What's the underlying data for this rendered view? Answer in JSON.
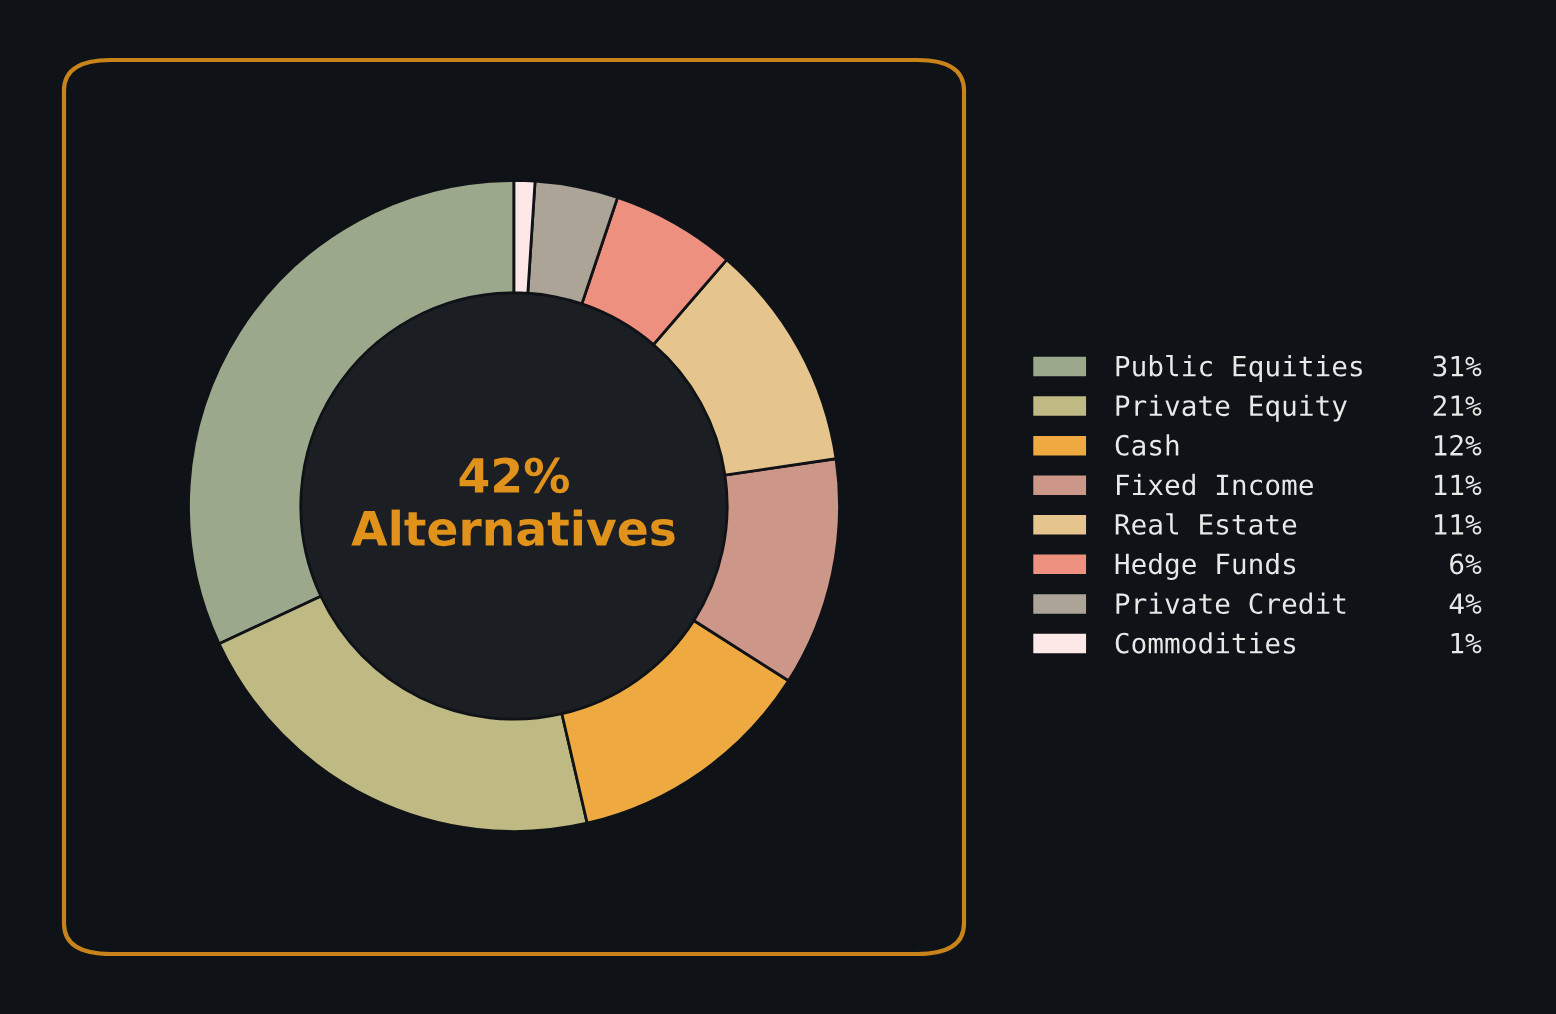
{
  "chart_data": {
    "type": "donut",
    "categories": [
      "Public Equities",
      "Private Equity",
      "Cash",
      "Fixed Income",
      "Real Estate",
      "Hedge Funds",
      "Private Credit",
      "Commodities"
    ],
    "values": [
      31,
      21,
      12,
      11,
      11,
      6,
      4,
      1
    ],
    "value_labels": [
      "31%",
      "21%",
      "12%",
      "11%",
      "11%",
      "6%",
      "4%",
      "1%"
    ],
    "colors": [
      "#9ca88c",
      "#bfba84",
      "#eeaa40",
      "#cc9688",
      "#e6c48e",
      "#ee9080",
      "#aca496",
      "#fde8e8"
    ],
    "annotations": [
      "42%\nAlternatives"
    ],
    "legend": "right"
  }
}
